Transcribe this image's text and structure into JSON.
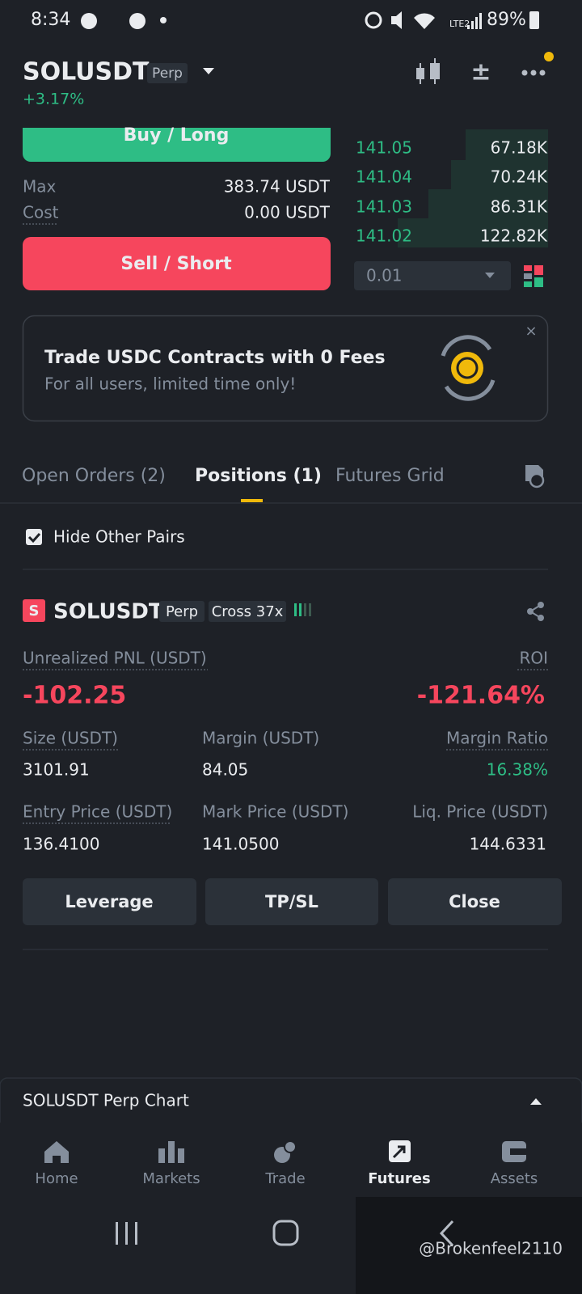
{
  "status_bar": {
    "time": "8:34",
    "network": "LTE2",
    "battery": "89%"
  },
  "header": {
    "symbol": "SOLUSDT",
    "contract_type": "Perp",
    "change": "+3.17%"
  },
  "order_form": {
    "buy_button": "Buy / Long",
    "max_label": "Max",
    "max_value": "383.74 USDT",
    "cost_label": "Cost",
    "cost_value": "0.00 USDT",
    "sell_button": "Sell / Short"
  },
  "order_book": {
    "rows": [
      {
        "price": "141.05",
        "amount": "67.18K"
      },
      {
        "price": "141.04",
        "amount": "70.24K"
      },
      {
        "price": "141.03",
        "amount": "86.31K"
      },
      {
        "price": "141.02",
        "amount": "122.82K"
      }
    ],
    "precision": "0.01"
  },
  "banner": {
    "title": "Trade USDC Contracts with 0 Fees",
    "subtitle": "For all users, limited time only!"
  },
  "tabs": [
    "Open Orders (2)",
    "Positions (1)",
    "Futures Grid"
  ],
  "filter": {
    "label": "Hide Other Pairs"
  },
  "position": {
    "icon_letter": "S",
    "symbol": "SOLUSDT",
    "contract_type": "Perp",
    "margin_mode": "Cross 37x",
    "pnl_label": "Unrealized PNL (USDT)",
    "pnl_value": "-102.25",
    "roi_label": "ROI",
    "roi_value": "-121.64%",
    "fields": [
      {
        "label": "Size (USDT)",
        "value": "3101.91"
      },
      {
        "label": "Margin (USDT)",
        "value": "84.05"
      },
      {
        "label": "Margin Ratio",
        "value": "16.38%"
      },
      {
        "label": "Entry Price (USDT)",
        "value": "136.4100"
      },
      {
        "label": "Mark Price (USDT)",
        "value": "141.0500"
      },
      {
        "label": "Liq. Price (USDT)",
        "value": "144.6331"
      }
    ]
  },
  "actions": [
    "Leverage",
    "TP/SL",
    "Close"
  ],
  "chart_panel": "SOLUSDT Perp Chart",
  "bottom_nav": [
    "Home",
    "Markets",
    "Trade",
    "Futures",
    "Assets"
  ],
  "watermark": "@Brokenfeel2110"
}
